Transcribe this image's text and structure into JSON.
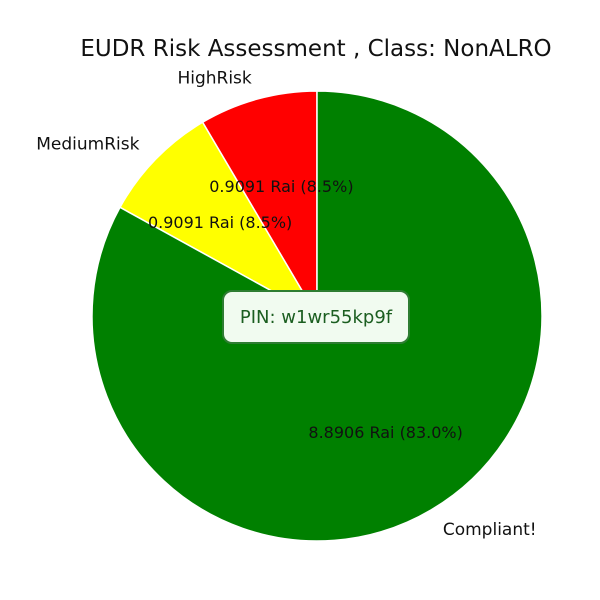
{
  "chart_data": {
    "type": "pie",
    "title": "EUDR Risk Assessment , Class: NonALRO",
    "start_angle_deg": 90,
    "direction": "counterclockwise",
    "slices": [
      {
        "label": "HighRisk",
        "value": 0.9091,
        "percent": 8.5,
        "value_label": "0.9091 Rai (8.5%)",
        "color": "#ff0000"
      },
      {
        "label": "MediumRisk",
        "value": 0.9091,
        "percent": 8.5,
        "value_label": "0.9091 Rai (8.5%)",
        "color": "#ffff00"
      },
      {
        "label": "Compliant!",
        "value": 8.8906,
        "percent": 83.0,
        "value_label": "8.8906 Rai (83.0%)",
        "color": "#008000"
      }
    ]
  },
  "pin": {
    "text": "PIN: w1wr55kp9f"
  }
}
